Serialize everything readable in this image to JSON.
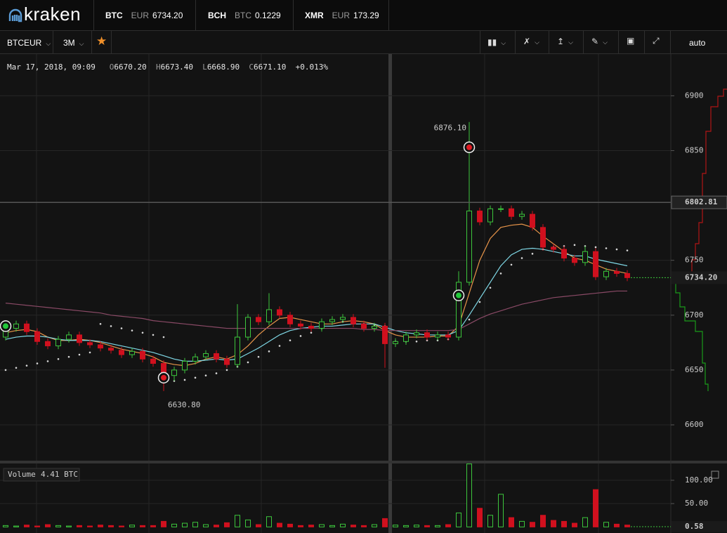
{
  "header": {
    "logo": "kraken",
    "tickers": [
      {
        "symbol": "BTC",
        "quote": "EUR",
        "price": "6734.20"
      },
      {
        "symbol": "BCH",
        "quote": "BTC",
        "price": "0.1229"
      },
      {
        "symbol": "XMR",
        "quote": "EUR",
        "price": "173.29"
      }
    ]
  },
  "toolbar": {
    "pair": "BTCEUR",
    "interval": "3M",
    "scale_mode": "auto"
  },
  "chart_data": [
    {
      "type": "candlestick",
      "legend": {
        "date": "Mar 17, 2018, 09:09",
        "ohlc": [
          {
            "label": "O",
            "value": "6670.20"
          },
          {
            "label": "H",
            "value": "6673.40"
          },
          {
            "label": "L",
            "value": "6668.90"
          },
          {
            "label": "C",
            "value": "6671.10"
          }
        ],
        "change": "+0.013%"
      },
      "up_color": "#3cc63c",
      "down_color": "#d0101e",
      "open": [
        6680,
        6688,
        6692,
        6685,
        6676,
        6672,
        6678,
        6682,
        6675,
        6673,
        6670,
        6668,
        6664,
        6667,
        6660,
        6656,
        6645,
        6650,
        6658,
        6662,
        6665,
        6660,
        6655,
        6680,
        6698,
        6694,
        6705,
        6700,
        6692,
        6690,
        6688,
        6694,
        6696,
        6698,
        6692,
        6688,
        6690,
        6674,
        6676,
        6682,
        6684,
        6680,
        6682,
        6680,
        6730,
        6795,
        6785,
        6797,
        6797,
        6790,
        6792,
        6780,
        6762,
        6760,
        6752,
        6748,
        6758,
        6735,
        6740,
        6738
      ],
      "high": [
        6691,
        6695,
        6695,
        6688,
        6679,
        6681,
        6685,
        6685,
        6678,
        6676,
        6673,
        6671,
        6670,
        6670,
        6663,
        6659,
        6653,
        6661,
        6665,
        6668,
        6668,
        6663,
        6710,
        6701,
        6701,
        6720,
        6708,
        6703,
        6695,
        6693,
        6697,
        6699,
        6701,
        6701,
        6695,
        6693,
        6693,
        6679,
        6685,
        6687,
        6687,
        6685,
        6685,
        6740,
        6876.1,
        6798,
        6800,
        6800,
        6800,
        6795,
        6795,
        6783,
        6765,
        6763,
        6755,
        6763,
        6761,
        6743,
        6743,
        6741
      ],
      "low": [
        6677,
        6685,
        6682,
        6673,
        6669,
        6669,
        6675,
        6672,
        6670,
        6667,
        6665,
        6661,
        6661,
        6657,
        6653,
        6630.8,
        6640,
        6647,
        6655,
        6659,
        6657,
        6652,
        6652,
        6677,
        6691,
        6691,
        6697,
        6689,
        6687,
        6685,
        6685,
        6691,
        6693,
        6689,
        6685,
        6685,
        6652,
        6671,
        6673,
        6679,
        6677,
        6677,
        6677,
        6677,
        6727,
        6782,
        6782,
        6794,
        6787,
        6787,
        6777,
        6759,
        6757,
        6749,
        6745,
        6745,
        6732,
        6732,
        6735,
        6731
      ],
      "close": [
        6688,
        6692,
        6685,
        6676,
        6672,
        6678,
        6682,
        6675,
        6673,
        6670,
        6668,
        6664,
        6667,
        6660,
        6656,
        6645,
        6650,
        6658,
        6662,
        6665,
        6660,
        6655,
        6680,
        6698,
        6694,
        6705,
        6700,
        6692,
        6690,
        6688,
        6694,
        6696,
        6698,
        6692,
        6688,
        6690,
        6674,
        6676,
        6682,
        6684,
        6680,
        6682,
        6680,
        6730,
        6795,
        6785,
        6797,
        6797,
        6790,
        6792,
        6780,
        6762,
        6760,
        6752,
        6748,
        6758,
        6735,
        6740,
        6738,
        6734.2
      ],
      "overlays": [
        {
          "style": "line",
          "color": "#e8954a",
          "values": [
            6684,
            6686,
            6687,
            6685,
            6680,
            6677,
            6677,
            6678,
            6677,
            6675,
            6672,
            6669,
            6667,
            6665,
            6662,
            6657,
            6655,
            6654,
            6656,
            6660,
            6662,
            6660,
            6664,
            6672,
            6682,
            6690,
            6697,
            6698,
            6696,
            6694,
            6692,
            6692,
            6694,
            6695,
            6694,
            6692,
            6686,
            6682,
            6680,
            6680,
            6680,
            6681,
            6681,
            6690,
            6720,
            6750,
            6770,
            6780,
            6782,
            6783,
            6780,
            6772,
            6765,
            6758,
            6752,
            6750,
            6746,
            6742,
            6740,
            6738
          ]
        },
        {
          "style": "line",
          "color": "#7fd8e6",
          "values": [
            6678,
            6680,
            6681,
            6681,
            6680,
            6678,
            6677,
            6677,
            6677,
            6676,
            6674,
            6672,
            6670,
            6668,
            6666,
            6663,
            6660,
            6658,
            6658,
            6659,
            6660,
            6659,
            6660,
            6665,
            6670,
            6676,
            6682,
            6686,
            6688,
            6689,
            6690,
            6690,
            6691,
            6692,
            6692,
            6692,
            6689,
            6686,
            6684,
            6683,
            6682,
            6682,
            6682,
            6686,
            6700,
            6715,
            6730,
            6745,
            6755,
            6760,
            6761,
            6760,
            6758,
            6756,
            6754,
            6754,
            6751,
            6749,
            6747,
            6745
          ]
        },
        {
          "style": "line",
          "color": "#8a4a66",
          "values": [
            6711,
            6710,
            6709,
            6708,
            6707,
            6706,
            6705,
            6704,
            6703,
            6702,
            6700,
            6699,
            6698,
            6697,
            6695,
            6694,
            6693,
            6692,
            6691,
            6690,
            6689,
            6688,
            6688,
            6688,
            6688,
            6688,
            6688,
            6688,
            6688,
            6688,
            6688,
            6688,
            6688,
            6688,
            6687,
            6687,
            6686,
            6686,
            6686,
            6686,
            6686,
            6686,
            6686,
            6687,
            6692,
            6697,
            6701,
            6704,
            6707,
            6710,
            6712,
            6714,
            6716,
            6717,
            6718,
            6719,
            6720,
            6721,
            6722,
            6722
          ]
        },
        {
          "style": "dots",
          "color": "#d8d8d8",
          "values": [
            6650,
            6652,
            6654,
            6656,
            6658,
            6660,
            6662,
            6664,
            6666,
            6692,
            6690,
            6688,
            6686,
            6684,
            6682,
            6680,
            6640,
            6641,
            6643,
            6645,
            6647,
            6650,
            6653,
            6657,
            6662,
            6667,
            6672,
            6677,
            6681,
            6684,
            6688,
            6695,
            6694,
            6693,
            6692,
            6691,
            6690,
            6676,
            6676,
            6676,
            6677,
            6677,
            6678,
            6684,
            6696,
            6712,
            6725,
            6738,
            6746,
            6752,
            6756,
            6760,
            6762,
            6763,
            6764,
            6763,
            6762,
            6761,
            6760,
            6759
          ]
        }
      ],
      "annotations": [
        {
          "text": "6876.10",
          "at": 44,
          "value": 6876.1
        },
        {
          "text": "6630.80",
          "at": 15,
          "value": 6630.8
        }
      ],
      "signals": [
        {
          "at": 0,
          "price": 6690,
          "color": "#22c83a"
        },
        {
          "at": 15,
          "price": 6643,
          "color": "#e01a22"
        },
        {
          "at": 43,
          "price": 6718,
          "color": "#22c83a"
        },
        {
          "at": 44,
          "price": 6853,
          "color": "#e01a22"
        }
      ],
      "price_lines": [
        {
          "value": 6802.81,
          "label": "6802.81"
        },
        {
          "value": 6734.2,
          "label": "6734.20",
          "last": true
        }
      ],
      "ylim": [
        6568,
        6938
      ],
      "yticks": [
        6600,
        6650,
        6700,
        6750,
        6850,
        6900
      ],
      "grid": true
    },
    {
      "type": "bar",
      "title": "Volume",
      "subtitle": "4.41 BTC",
      "values": [
        3,
        2,
        4,
        2,
        5,
        3,
        2,
        3,
        2,
        4,
        3,
        2,
        4,
        3,
        3,
        12,
        6,
        8,
        10,
        5,
        4,
        9,
        25,
        15,
        5,
        22,
        8,
        6,
        3,
        4,
        5,
        3,
        6,
        4,
        3,
        5,
        18,
        4,
        3,
        4,
        3,
        3,
        5,
        30,
        135,
        40,
        25,
        70,
        20,
        12,
        10,
        25,
        14,
        12,
        8,
        20,
        80,
        10,
        6,
        4
      ],
      "last": {
        "value": 0.58,
        "label": "0.58"
      },
      "ylim": [
        -13,
        136
      ],
      "yticks": [
        {
          "value": 100,
          "label": "100.00"
        },
        {
          "value": 50,
          "label": "50.00"
        }
      ],
      "grid": true
    }
  ]
}
